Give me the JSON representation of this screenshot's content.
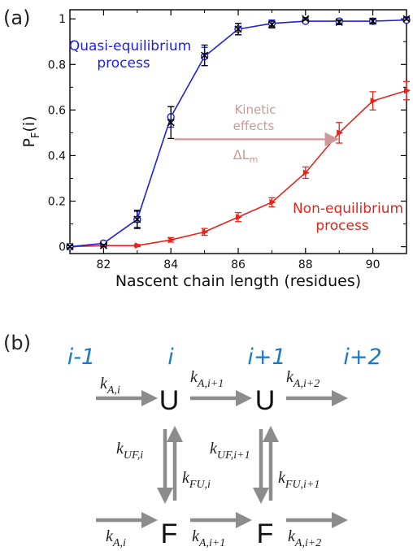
{
  "panel_a_label": "(a)",
  "panel_b_label": "(b)",
  "chart_data": {
    "type": "line",
    "xlabel": "Nascent chain length (residues)",
    "ylabel_main": "P",
    "ylabel_sub": "F",
    "ylabel_tail": "(i)",
    "xlim": [
      81,
      91
    ],
    "ylim": [
      -0.03,
      1.04
    ],
    "xticks": [
      82,
      84,
      86,
      88,
      90
    ],
    "yticks": [
      0,
      0.2,
      0.4,
      0.6,
      0.8,
      1
    ],
    "ytick_labels": [
      "0",
      "0.2",
      "0.4",
      "0.6",
      "0.8",
      "1"
    ],
    "colors": {
      "quasi": "#1f1fe0",
      "non": "#e8231c",
      "arrow": "#cc9a98",
      "markers": "#000000"
    },
    "series": [
      {
        "key": "quasi",
        "x": [
          81,
          82,
          83,
          84,
          85,
          86,
          87,
          88,
          89,
          90,
          91
        ],
        "y": [
          0.0,
          0.015,
          0.12,
          0.57,
          0.835,
          0.955,
          0.98,
          0.99,
          0.99,
          0.99,
          0.995
        ],
        "err": [
          0.005,
          0.01,
          0.035,
          0.045,
          0.04,
          0.025,
          0.015,
          0.005,
          0.01,
          0.01,
          0.005
        ]
      },
      {
        "key": "non",
        "x": [
          81,
          82,
          83,
          84,
          85,
          86,
          87,
          88,
          89,
          90,
          91
        ],
        "y": [
          0.0,
          0.005,
          0.005,
          0.03,
          0.065,
          0.13,
          0.195,
          0.325,
          0.5,
          0.64,
          0.685
        ],
        "err": [
          0.005,
          0.005,
          0.005,
          0.01,
          0.015,
          0.02,
          0.02,
          0.025,
          0.045,
          0.04,
          0.04
        ]
      },
      {
        "key": "cross_markers",
        "x": [
          81,
          82,
          83,
          84,
          85,
          86,
          87,
          88,
          89,
          90,
          91
        ],
        "y": [
          0.0,
          0.005,
          0.12,
          0.545,
          0.84,
          0.955,
          0.975,
          1.0,
          0.985,
          0.99,
          1.0
        ],
        "err": [
          0.005,
          0.005,
          0.04,
          0.07,
          0.045,
          0.025,
          0.015,
          0.005,
          0.01,
          0.01,
          0.005
        ]
      }
    ],
    "annotations": {
      "quasi_line1": "Quasi-equilibrium",
      "quasi_line2": "process",
      "non_line1": "Non-equilibrium",
      "non_line2": "process",
      "kinetic_line1": "Kinetic",
      "kinetic_line2": "effects",
      "delta_main": "ΔL",
      "delta_sub": "m",
      "arrow_from": [
        84,
        0.5
      ],
      "arrow_to": [
        89,
        0.5
      ]
    }
  },
  "scheme": {
    "indices": [
      "i-1",
      "i",
      "i+1",
      "i+2"
    ],
    "states": {
      "unfolded": "U",
      "folded": "F"
    },
    "rates_top": [
      {
        "main": "k",
        "sub": "A,i"
      },
      {
        "main": "k",
        "sub": "A,i+1"
      },
      {
        "main": "k",
        "sub": "A,i+2"
      }
    ],
    "rates_bottom": [
      {
        "main": "k",
        "sub": "A,i"
      },
      {
        "main": "k",
        "sub": "A,i+1"
      },
      {
        "main": "k",
        "sub": "A,i+2"
      }
    ],
    "rates_uf": [
      {
        "main": "k",
        "sub": "UF,i"
      },
      {
        "main": "k",
        "sub": "UF,i+1"
      }
    ],
    "rates_fu": [
      {
        "main": "k",
        "sub": "FU,i"
      },
      {
        "main": "k",
        "sub": "FU,i+1"
      }
    ],
    "arrow_color": "#8c8c8c"
  }
}
